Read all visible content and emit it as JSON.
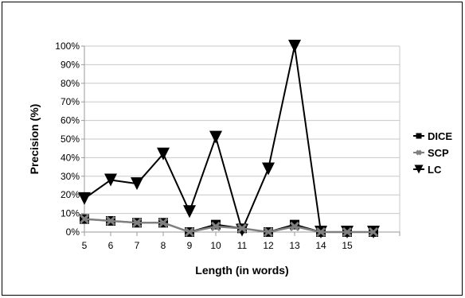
{
  "chart_data": {
    "type": "line",
    "title": "",
    "xlabel": "Length (in words)",
    "ylabel": "Precision (%)",
    "categories": [
      "5",
      "6",
      "7",
      "8",
      "9",
      "10",
      "11",
      "12",
      "13",
      "14",
      "15",
      ""
    ],
    "ylim": [
      0,
      100
    ],
    "yticks": [
      "0%",
      "10%",
      "20%",
      "30%",
      "40%",
      "50%",
      "60%",
      "70%",
      "80%",
      "90%",
      "100%"
    ],
    "grid": "horizontal",
    "legend_position": "right",
    "series": [
      {
        "name": "DICE",
        "color": "#000000",
        "marker": "square",
        "values": [
          7,
          6,
          5,
          5,
          0,
          4,
          2,
          0,
          4,
          0,
          0,
          0
        ]
      },
      {
        "name": "SCP",
        "color": "#808080",
        "marker": "x",
        "values": [
          7,
          6,
          5,
          5,
          0,
          3,
          2,
          0,
          3,
          0,
          0,
          0
        ]
      },
      {
        "name": "LC",
        "color": "#000000",
        "marker": "triangle-down",
        "values": [
          18,
          28,
          26,
          42,
          11,
          51,
          1,
          34,
          100,
          0,
          0,
          0
        ]
      }
    ]
  }
}
